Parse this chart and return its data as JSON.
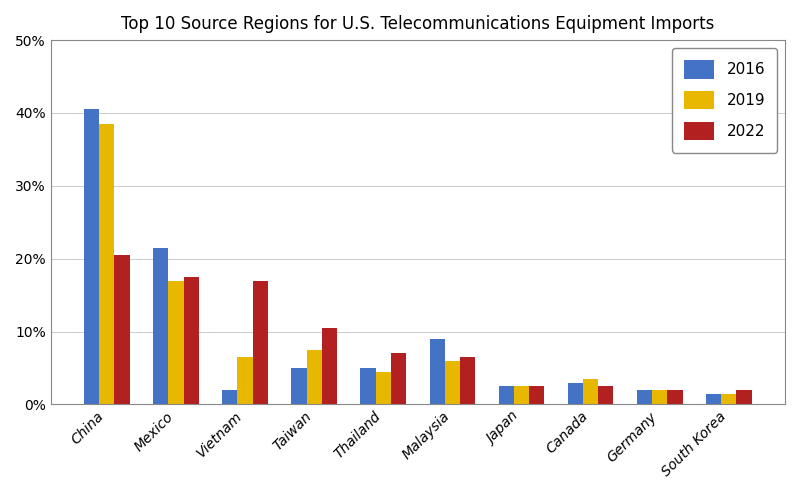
{
  "title": "Top 10 Source Regions for U.S. Telecommunications Equipment Imports",
  "categories": [
    "China",
    "Mexico",
    "Vietnam",
    "Taiwan",
    "Thailand",
    "Malaysia",
    "Japan",
    "Canada",
    "Germany",
    "South Korea"
  ],
  "years": [
    "2016",
    "2019",
    "2022"
  ],
  "values": {
    "2016": [
      40.5,
      21.5,
      2.0,
      5.0,
      5.0,
      9.0,
      2.5,
      3.0,
      2.0,
      1.5
    ],
    "2019": [
      38.5,
      17.0,
      6.5,
      7.5,
      4.5,
      6.0,
      2.5,
      3.5,
      2.0,
      1.5
    ],
    "2022": [
      20.5,
      17.5,
      17.0,
      10.5,
      7.0,
      6.5,
      2.5,
      2.5,
      2.0,
      2.0
    ]
  },
  "colors": {
    "2016": "#4472C4",
    "2019": "#E8B800",
    "2022": "#B22020"
  },
  "ylim": [
    0,
    50
  ],
  "yticks": [
    0,
    10,
    20,
    30,
    40,
    50
  ],
  "ytick_labels": [
    "0%",
    "10%",
    "20%",
    "30%",
    "40%",
    "50%"
  ],
  "legend_loc": "upper right",
  "background_color": "#ffffff",
  "grid_color": "#cccccc",
  "bar_width": 0.22,
  "title_fontsize": 12,
  "tick_fontsize": 10,
  "legend_fontsize": 11
}
